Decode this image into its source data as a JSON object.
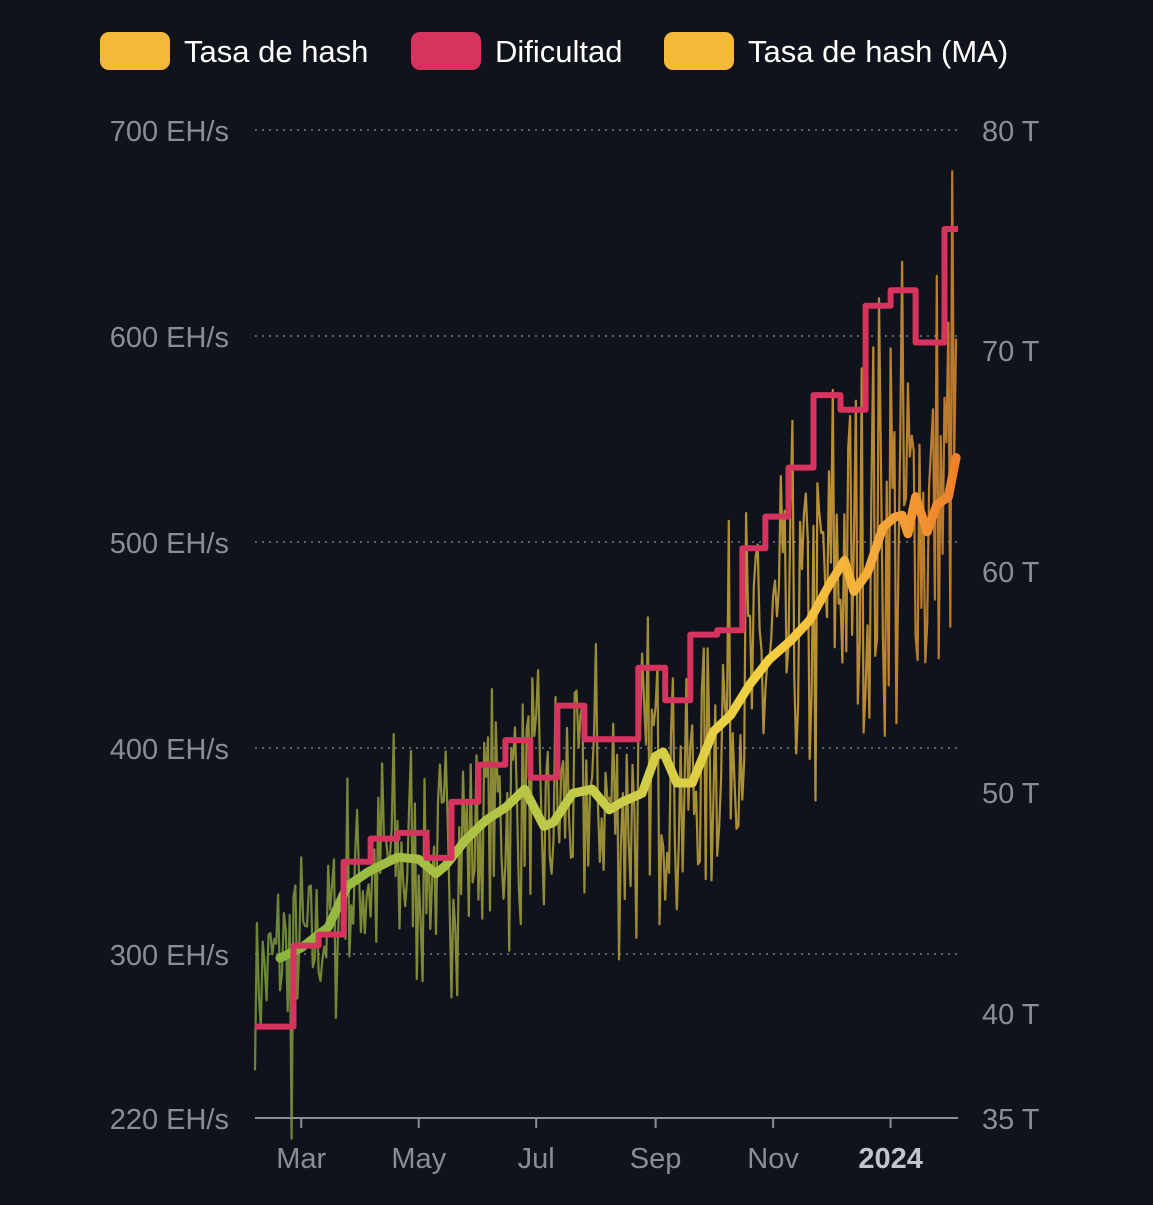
{
  "chart_data": {
    "type": "line",
    "legend": {
      "placement": "top",
      "items": [
        {
          "label": "Tasa de hash",
          "color": "#f4b83a"
        },
        {
          "label": "Dificultad",
          "color": "#d6335f"
        },
        {
          "label": "Tasa de hash (MA)",
          "color": "#f4b83a"
        }
      ]
    },
    "x_axis": {
      "ticks": [
        "Mar",
        "May",
        "Jul",
        "Sep",
        "Nov",
        "2024"
      ],
      "tick_dates": [
        "2023-03-01",
        "2023-05-01",
        "2023-07-01",
        "2023-09-01",
        "2023-11-01",
        "2024-01-01"
      ],
      "range": [
        "2023-02-05",
        "2024-02-05"
      ],
      "bold_tick": "2024"
    },
    "y_left": {
      "ticks": [
        {
          "value": 700,
          "label": "700 EH/s"
        },
        {
          "value": 600,
          "label": "600 EH/s"
        },
        {
          "value": 500,
          "label": "500 EH/s"
        },
        {
          "value": 400,
          "label": "400 EH/s"
        },
        {
          "value": 300,
          "label": "300 EH/s"
        },
        {
          "value": 220,
          "label": "220 EH/s"
        }
      ],
      "range": [
        220,
        700
      ]
    },
    "y_right": {
      "ticks": [
        {
          "value": 80,
          "label": "80 T"
        },
        {
          "value": 70,
          "label": "70 T"
        },
        {
          "value": 60,
          "label": "60 T"
        },
        {
          "value": 50,
          "label": "50 T"
        },
        {
          "value": 40,
          "label": "40 T"
        },
        {
          "value": 35,
          "label": "35 T"
        }
      ],
      "range": [
        35,
        80
      ]
    },
    "grid": true,
    "series": [
      {
        "name": "Dificultad",
        "axis": "right",
        "color": "#d6335f",
        "step": true,
        "points": [
          [
            "2023-02-05",
            39.35
          ],
          [
            "2023-02-25",
            43.05
          ],
          [
            "2023-03-10",
            43.55
          ],
          [
            "2023-03-23",
            46.84
          ],
          [
            "2023-04-06",
            47.89
          ],
          [
            "2023-04-20",
            48.15
          ],
          [
            "2023-05-05",
            47.02
          ],
          [
            "2023-05-18",
            49.55
          ],
          [
            "2023-06-01",
            51.23
          ],
          [
            "2023-06-15",
            52.35
          ],
          [
            "2023-06-28",
            50.65
          ],
          [
            "2023-07-12",
            53.91
          ],
          [
            "2023-07-26",
            52.39
          ],
          [
            "2023-08-23",
            55.62
          ],
          [
            "2023-09-06",
            54.15
          ],
          [
            "2023-09-19",
            57.12
          ],
          [
            "2023-10-03",
            57.32
          ],
          [
            "2023-10-16",
            61.03
          ],
          [
            "2023-10-28",
            62.46
          ],
          [
            "2023-11-09",
            64.68
          ],
          [
            "2023-11-22",
            67.96
          ],
          [
            "2023-12-06",
            67.3
          ],
          [
            "2023-12-19",
            72.01
          ],
          [
            "2024-01-01",
            72.72
          ],
          [
            "2024-01-14",
            70.34
          ],
          [
            "2024-01-29",
            75.5
          ],
          [
            "2024-02-05",
            75.5
          ]
        ]
      },
      {
        "name": "Tasa de hash (MA)",
        "axis": "left",
        "color_gradient": [
          "#8bb53e",
          "#f4d03f",
          "#f0852a"
        ],
        "points": [
          [
            "2023-02-18",
            298
          ],
          [
            "2023-03-01",
            303
          ],
          [
            "2023-03-15",
            313
          ],
          [
            "2023-03-25",
            333
          ],
          [
            "2023-04-05",
            340
          ],
          [
            "2023-04-20",
            347
          ],
          [
            "2023-05-01",
            346
          ],
          [
            "2023-05-10",
            339
          ],
          [
            "2023-05-15",
            343
          ],
          [
            "2023-05-25",
            355
          ],
          [
            "2023-06-05",
            365
          ],
          [
            "2023-06-15",
            371
          ],
          [
            "2023-06-25",
            380
          ],
          [
            "2023-07-05",
            362
          ],
          [
            "2023-07-10",
            364
          ],
          [
            "2023-07-20",
            378
          ],
          [
            "2023-07-30",
            380
          ],
          [
            "2023-08-08",
            370
          ],
          [
            "2023-08-15",
            374
          ],
          [
            "2023-08-25",
            378
          ],
          [
            "2023-09-01",
            396
          ],
          [
            "2023-09-05",
            398
          ],
          [
            "2023-09-12",
            383
          ],
          [
            "2023-09-20",
            383
          ],
          [
            "2023-10-01",
            408
          ],
          [
            "2023-10-10",
            416
          ],
          [
            "2023-10-20",
            431
          ],
          [
            "2023-10-30",
            443
          ],
          [
            "2023-11-10",
            452
          ],
          [
            "2023-11-20",
            462
          ],
          [
            "2023-11-30",
            479
          ],
          [
            "2023-12-08",
            491
          ],
          [
            "2023-12-13",
            476
          ],
          [
            "2023-12-20",
            485
          ],
          [
            "2023-12-28",
            507
          ],
          [
            "2024-01-03",
            512
          ],
          [
            "2024-01-07",
            513
          ],
          [
            "2024-01-10",
            504
          ],
          [
            "2024-01-14",
            522
          ],
          [
            "2024-01-20",
            505
          ],
          [
            "2024-01-25",
            518
          ],
          [
            "2024-01-31",
            522
          ],
          [
            "2024-02-04",
            541
          ]
        ]
      }
    ]
  }
}
